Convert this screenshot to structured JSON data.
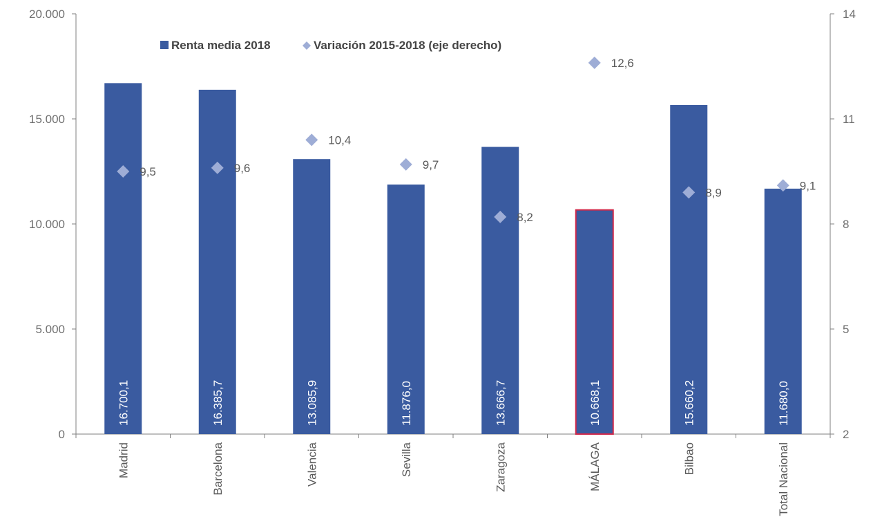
{
  "chart_data": {
    "type": "bar",
    "categories": [
      "Madrid",
      "Barcelona",
      "Valencia",
      "Sevilla",
      "Zaragoza",
      "MÁLAGA",
      "Bilbao",
      "Total Nacional"
    ],
    "series": [
      {
        "name": "Renta media 2018",
        "type": "bar",
        "axis": "left",
        "values": [
          16700.1,
          16385.7,
          13085.9,
          11876.0,
          13666.7,
          10668.1,
          15660.2,
          11680.0
        ],
        "labels": [
          "16.700,1",
          "16.385,7",
          "13.085,9",
          "11.876,0",
          "13.666,7",
          "10.668,1",
          "15.660,2",
          "11.680,0"
        ],
        "color": "#3a5ba0",
        "highlight_index": 5,
        "highlight_outline": "#d0284a"
      },
      {
        "name": "Variación 2015-2018 (eje derecho)",
        "type": "scatter",
        "marker": "diamond",
        "axis": "right",
        "values": [
          9.5,
          9.6,
          10.4,
          9.7,
          8.2,
          12.6,
          8.9,
          9.1
        ],
        "labels": [
          "9,5",
          "9,6",
          "10,4",
          "9,7",
          "8,2",
          "12,6",
          "8,9",
          "9,1"
        ],
        "color": "#9eadd6"
      }
    ],
    "y_left": {
      "ylim": [
        0,
        20000
      ],
      "ticks": [
        0,
        5000,
        10000,
        15000,
        20000
      ],
      "tick_labels": [
        "0",
        "5.000",
        "10.000",
        "15.000",
        "20.000"
      ]
    },
    "y_right": {
      "ylim": [
        2,
        14
      ],
      "ticks": [
        2,
        5,
        8,
        11,
        14
      ],
      "tick_labels": [
        "2",
        "5",
        "8",
        "11",
        "14"
      ]
    },
    "legend": {
      "position": "top-left",
      "items": [
        "Renta media 2018",
        "Variación 2015-2018 (eje derecho)"
      ]
    },
    "title": "",
    "xlabel": "",
    "ylabel": "",
    "grid": false
  }
}
